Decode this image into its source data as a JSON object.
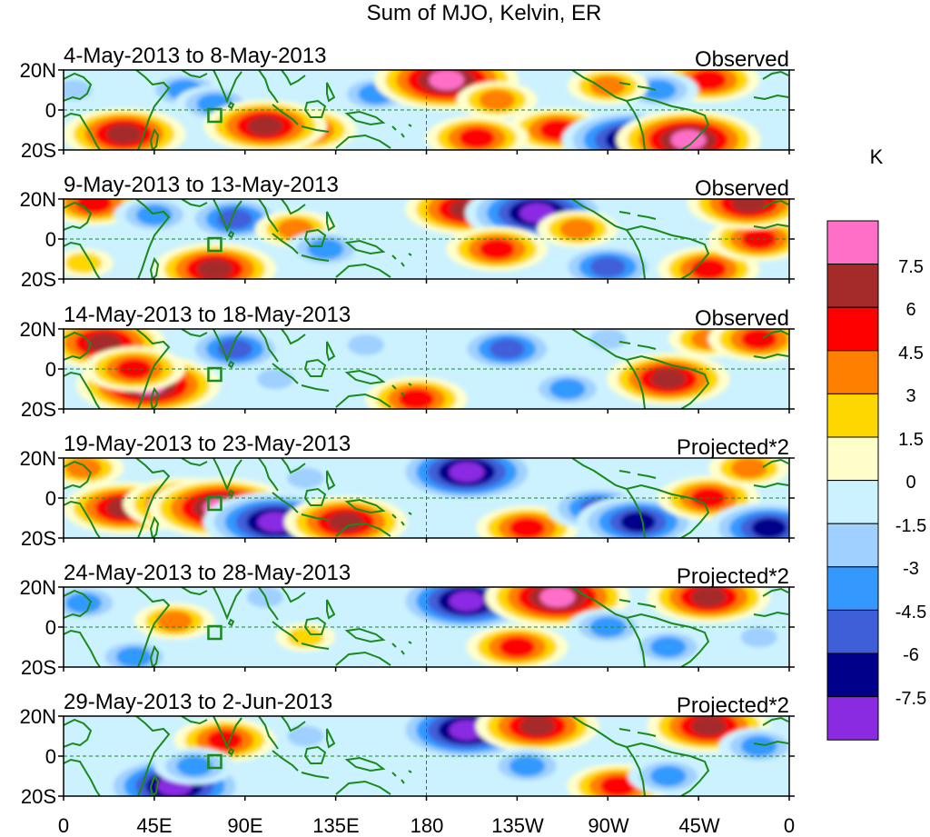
{
  "title": "Sum of MJO, Kelvin, ER",
  "y_ticks": [
    "20N",
    "0",
    "20S"
  ],
  "x_ticks": [
    "0",
    "45E",
    "90E",
    "135E",
    "180",
    "135W",
    "90W",
    "45W",
    "0"
  ],
  "legend": {
    "unit": "K",
    "labels": [
      "7.5",
      "6",
      "4.5",
      "3",
      "1.5",
      "0",
      "-1.5",
      "-3",
      "-4.5",
      "-6",
      "-7.5"
    ],
    "colors": [
      "#ff6ec7",
      "#a52a2a",
      "#ff0000",
      "#ff7f00",
      "#ffd700",
      "#ffffcc",
      "#ccf2ff",
      "#9fd0ff",
      "#3399ff",
      "#3f5fd9",
      "#00008b",
      "#8a2be2"
    ]
  },
  "panels": [
    {
      "date": "4-May-2013 to 8-May-2013",
      "tag": "Observed"
    },
    {
      "date": "9-May-2013 to 13-May-2013",
      "tag": "Observed"
    },
    {
      "date": "14-May-2013 to 18-May-2013",
      "tag": "Observed"
    },
    {
      "date": "19-May-2013 to 23-May-2013",
      "tag": "Projected*2"
    },
    {
      "date": "24-May-2013 to 28-May-2013",
      "tag": "Projected*2"
    },
    {
      "date": "29-May-2013 to 2-Jun-2013",
      "tag": "Projected*2"
    }
  ],
  "map_data": {
    "colors": {
      "pink": "#ff6ec7",
      "brown": "#a52a2a",
      "red": "#ff0000",
      "orange": "#ff7f00",
      "gold": "#ffd700",
      "cream": "#ffffcc",
      "pale": "#ccf2ff",
      "lblue": "#9fd0ff",
      "blue": "#3399ff",
      "royal": "#3f5fd9",
      "navy": "#00008b",
      "purple": "#8a2be2",
      "coast": "#1a8a1a"
    },
    "anomalies": [
      [
        {
          "lon": 30,
          "lat": -12,
          "v": 6
        },
        {
          "lon": 60,
          "lat": 10,
          "v": -3
        },
        {
          "lon": 75,
          "lat": 3,
          "v": -3
        },
        {
          "lon": 120,
          "lat": -10,
          "v": 4.5
        },
        {
          "lon": 100,
          "lat": -8,
          "v": 6
        },
        {
          "lon": 155,
          "lat": 8,
          "v": -3
        },
        {
          "lon": 190,
          "lat": 15,
          "v": 7.5
        },
        {
          "lon": 215,
          "lat": 5,
          "v": 3
        },
        {
          "lon": 245,
          "lat": -10,
          "v": 4.5
        },
        {
          "lon": 205,
          "lat": -14,
          "v": 4.5
        },
        {
          "lon": 283,
          "lat": -15,
          "v": -7.5
        },
        {
          "lon": 310,
          "lat": -15,
          "v": 7.5
        },
        {
          "lon": 320,
          "lat": 15,
          "v": 4.5
        },
        {
          "lon": 295,
          "lat": 10,
          "v": -3
        },
        {
          "lon": 270,
          "lat": 12,
          "v": 3
        },
        {
          "lon": 5,
          "lat": 10,
          "v": -1.5
        }
      ],
      [
        {
          "lon": 15,
          "lat": 18,
          "v": 4.5
        },
        {
          "lon": 45,
          "lat": 12,
          "v": -3
        },
        {
          "lon": 85,
          "lat": 10,
          "v": -4.5
        },
        {
          "lon": 75,
          "lat": -15,
          "v": 6
        },
        {
          "lon": 115,
          "lat": 5,
          "v": 3
        },
        {
          "lon": 130,
          "lat": -5,
          "v": -3
        },
        {
          "lon": 200,
          "lat": 15,
          "v": 6
        },
        {
          "lon": 235,
          "lat": 13,
          "v": -7.5
        },
        {
          "lon": 255,
          "lat": 5,
          "v": 3
        },
        {
          "lon": 215,
          "lat": -5,
          "v": 4.5
        },
        {
          "lon": 270,
          "lat": -14,
          "v": -4.5
        },
        {
          "lon": 320,
          "lat": -15,
          "v": 4.5
        },
        {
          "lon": 345,
          "lat": 0,
          "v": 4.5
        },
        {
          "lon": 340,
          "lat": 18,
          "v": 6
        },
        {
          "lon": 10,
          "lat": -12,
          "v": 1.5
        }
      ],
      [
        {
          "lon": 20,
          "lat": 13,
          "v": 6
        },
        {
          "lon": 42,
          "lat": -8,
          "v": 7.5
        },
        {
          "lon": 35,
          "lat": 0,
          "v": 4.5
        },
        {
          "lon": 85,
          "lat": 10,
          "v": -4.5
        },
        {
          "lon": 105,
          "lat": -5,
          "v": -1.5
        },
        {
          "lon": 175,
          "lat": -15,
          "v": 4.5
        },
        {
          "lon": 150,
          "lat": 12,
          "v": -1.5
        },
        {
          "lon": 220,
          "lat": 10,
          "v": -4.5
        },
        {
          "lon": 250,
          "lat": -10,
          "v": -3
        },
        {
          "lon": 300,
          "lat": -5,
          "v": 6
        },
        {
          "lon": 320,
          "lat": 15,
          "v": 3
        },
        {
          "lon": 270,
          "lat": 15,
          "v": -1.5
        },
        {
          "lon": 345,
          "lat": 15,
          "v": 4.5
        }
      ],
      [
        {
          "lon": 10,
          "lat": 15,
          "v": 3
        },
        {
          "lon": 30,
          "lat": -5,
          "v": 6
        },
        {
          "lon": 60,
          "lat": -3,
          "v": 6
        },
        {
          "lon": 78,
          "lat": -5,
          "v": 7.5
        },
        {
          "lon": 105,
          "lat": -12,
          "v": -7.5
        },
        {
          "lon": 140,
          "lat": -12,
          "v": 6
        },
        {
          "lon": 120,
          "lat": 10,
          "v": -1.5
        },
        {
          "lon": 200,
          "lat": 13,
          "v": -7.5
        },
        {
          "lon": 230,
          "lat": -15,
          "v": 4.5
        },
        {
          "lon": 265,
          "lat": -5,
          "v": -4.5
        },
        {
          "lon": 285,
          "lat": -12,
          "v": -6
        },
        {
          "lon": 320,
          "lat": 0,
          "v": 4.5
        },
        {
          "lon": 350,
          "lat": -15,
          "v": -6
        },
        {
          "lon": 340,
          "lat": 15,
          "v": 3
        }
      ],
      [
        {
          "lon": 10,
          "lat": 12,
          "v": -3
        },
        {
          "lon": 55,
          "lat": 3,
          "v": 3
        },
        {
          "lon": 35,
          "lat": -15,
          "v": -3
        },
        {
          "lon": 100,
          "lat": 15,
          "v": -1.5
        },
        {
          "lon": 120,
          "lat": -5,
          "v": 1.5
        },
        {
          "lon": 200,
          "lat": 13,
          "v": -7.5
        },
        {
          "lon": 245,
          "lat": 15,
          "v": 7.5
        },
        {
          "lon": 225,
          "lat": -10,
          "v": 4.5
        },
        {
          "lon": 270,
          "lat": 0,
          "v": -3
        },
        {
          "lon": 320,
          "lat": 15,
          "v": 6
        },
        {
          "lon": 300,
          "lat": -10,
          "v": -3
        },
        {
          "lon": 345,
          "lat": -5,
          "v": -1.5
        }
      ],
      [
        {
          "lon": 55,
          "lat": -15,
          "v": -7.5
        },
        {
          "lon": 80,
          "lat": 8,
          "v": 4.5
        },
        {
          "lon": 65,
          "lat": -5,
          "v": -3
        },
        {
          "lon": 120,
          "lat": 10,
          "v": -1.5
        },
        {
          "lon": 200,
          "lat": 13,
          "v": -7.5
        },
        {
          "lon": 235,
          "lat": 15,
          "v": 6
        },
        {
          "lon": 230,
          "lat": -5,
          "v": -3
        },
        {
          "lon": 275,
          "lat": -15,
          "v": 4.5
        },
        {
          "lon": 320,
          "lat": 15,
          "v": 6
        },
        {
          "lon": 300,
          "lat": -10,
          "v": -3
        },
        {
          "lon": 345,
          "lat": 5,
          "v": -3
        }
      ]
    ]
  }
}
